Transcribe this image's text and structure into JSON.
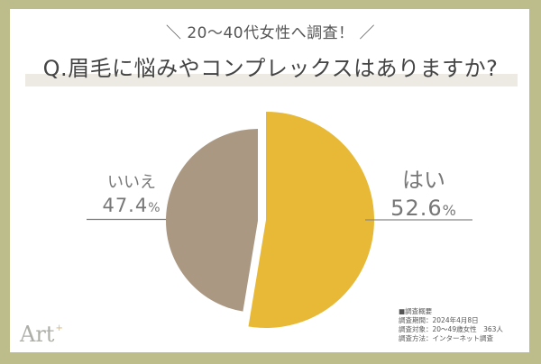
{
  "header": {
    "subtitle": "＼ 20〜40代女性へ調査！ ／",
    "title": "Q.眉毛に悩みやコンプレックスはありますか?"
  },
  "labels": {
    "no": {
      "name": "いいえ",
      "value": "47.4",
      "unit": "%"
    },
    "yes": {
      "name": "はい",
      "value": "52.6",
      "unit": "%"
    }
  },
  "notes": {
    "heading": "■調査概要",
    "lines": [
      "調査期間：2024年4月8日",
      "調査対象：20〜49歳女性　363人",
      "調査方法：インターネット調査"
    ]
  },
  "logo": {
    "text": "Art",
    "mark": "+"
  },
  "colors": {
    "frame": "#bdbd8b",
    "yes": "#e7b937",
    "no": "#ab9883",
    "text": "#777777"
  },
  "chart_data": {
    "type": "pie",
    "title": "Q.眉毛に悩みやコンプレックスはありますか?",
    "subtitle": "20〜40代女性へ調査！",
    "categories": [
      "はい",
      "いいえ"
    ],
    "values": [
      52.6,
      47.4
    ],
    "unit": "%",
    "colors": [
      "#e7b937",
      "#ab9883"
    ],
    "exploded": "はい",
    "legend": "none (direct labels)",
    "annotations": [
      "調査期間：2024年4月8日",
      "調査対象：20〜49歳女性 363人",
      "調査方法：インターネット調査"
    ]
  }
}
